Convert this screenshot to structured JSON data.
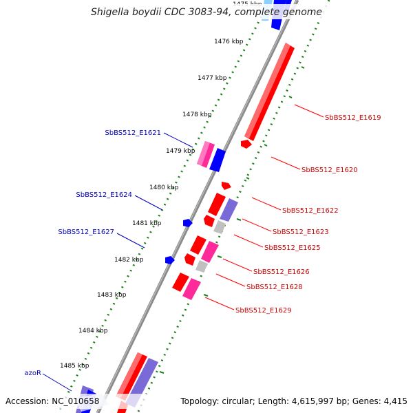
{
  "title": "Shigella boydii CDC 3083-94, complete genome",
  "accession": "Accession: NC_010658",
  "topology": "Topology: circular; Length: 4,615,997 bp; Genes: 4,415",
  "colors": {
    "backbone": "#808080",
    "dots": "#1a7f1a",
    "red": "#ff0000",
    "pink": "#ff2a9a",
    "blue": "#0000ff",
    "purple": "#7a6ad8",
    "grey": "#c0c0c0",
    "ltblue": "#8fd0ff",
    "label_red": "#cc0000",
    "label_blue": "#0000bb"
  },
  "kbp_ticks": [
    "1475 kbp",
    "1476 kbp",
    "1477 kbp",
    "1478 kbp",
    "1479 kbp",
    "1480 kbp",
    "1481 kbp",
    "1482 kbp",
    "1483 kbp",
    "1484 kbp",
    "1485 kbp"
  ],
  "gene_labels": {
    "right": [
      "SbBS512_E1619",
      "SbBS512_E1620",
      "SbBS512_E1622",
      "SbBS512_E1623",
      "SbBS512_E1625",
      "SbBS512_E1626",
      "SbBS512_E1628",
      "SbBS512_E1629"
    ],
    "left": [
      "SbBS512_E1621",
      "SbBS512_E1624",
      "SbBS512_E1627",
      "azoR"
    ]
  }
}
